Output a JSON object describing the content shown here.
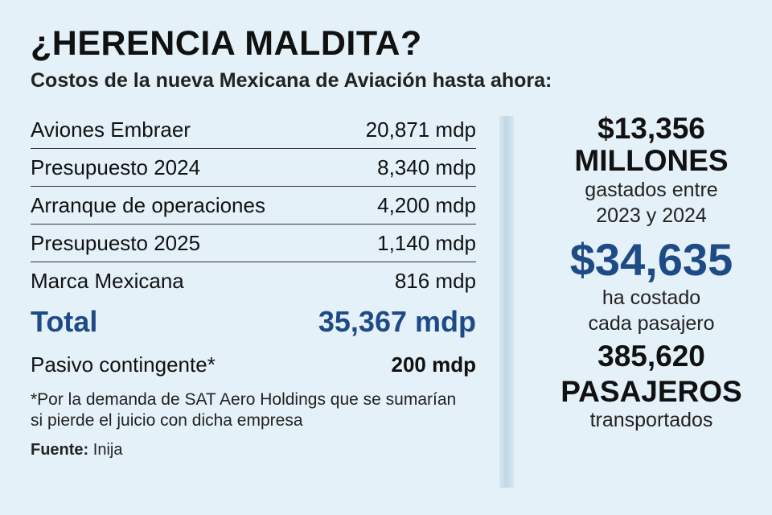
{
  "header": {
    "title": "¿HERENCIA MALDITA?",
    "subtitle": "Costos de la nueva Mexicana de Aviación hasta ahora:"
  },
  "costs": [
    {
      "label": "Aviones Embraer",
      "value": "20,871 mdp"
    },
    {
      "label": "Presupuesto 2024",
      "value": "8,340 mdp"
    },
    {
      "label": "Arranque de operaciones",
      "value": "4,200 mdp"
    },
    {
      "label": "Presupuesto 2025",
      "value": "1,140 mdp"
    },
    {
      "label": "Marca Mexicana",
      "value": "816 mdp"
    }
  ],
  "total": {
    "label": "Total",
    "value": "35,367 mdp"
  },
  "pasivo": {
    "label": "Pasivo contingente*",
    "value": "200 mdp"
  },
  "footnote": "*Por la demanda de SAT Aero Holdings que se sumarían si pierde el juicio con dicha empresa",
  "source": {
    "label": "Fuente:",
    "value": "Inija"
  },
  "stats": {
    "spent_amount": "$13,356",
    "spent_unit": "MILLONES",
    "spent_desc_1": "gastados entre",
    "spent_desc_2": "2023 y 2024",
    "per_passenger": "$34,635",
    "per_passenger_desc_1": "ha costado",
    "per_passenger_desc_2": "cada pasajero",
    "passengers": "385,620",
    "passengers_unit": "PASAJEROS",
    "passengers_desc": "transportados"
  },
  "colors": {
    "accent": "#1e4b86",
    "background": "#e4f1f9"
  }
}
